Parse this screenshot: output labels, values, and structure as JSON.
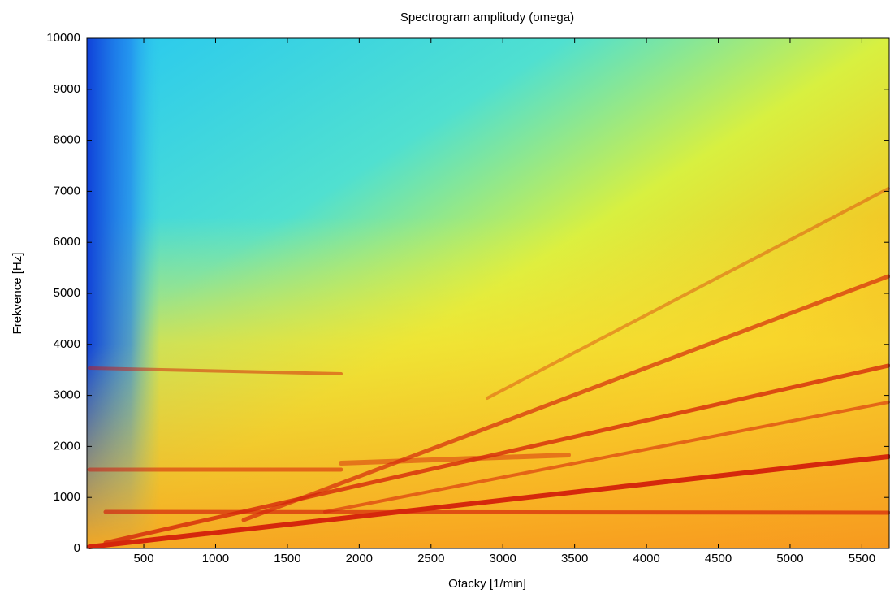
{
  "chart_data": {
    "type": "spectrogram",
    "title": "Spectrogram amplitudy (omega)",
    "x_label": "Otacky [1/min]",
    "y_label": "Frekvence [Hz]",
    "xlim": [
      104,
      5690
    ],
    "xticks": [
      500,
      1000,
      1500,
      2000,
      2500,
      3000,
      3500,
      4000,
      4500,
      5000,
      5500
    ],
    "ylim": [
      0,
      10000
    ],
    "yticks": [
      0,
      1000,
      2000,
      3000,
      4000,
      5000,
      6000,
      7000,
      8000,
      9000,
      10000
    ]
  }
}
